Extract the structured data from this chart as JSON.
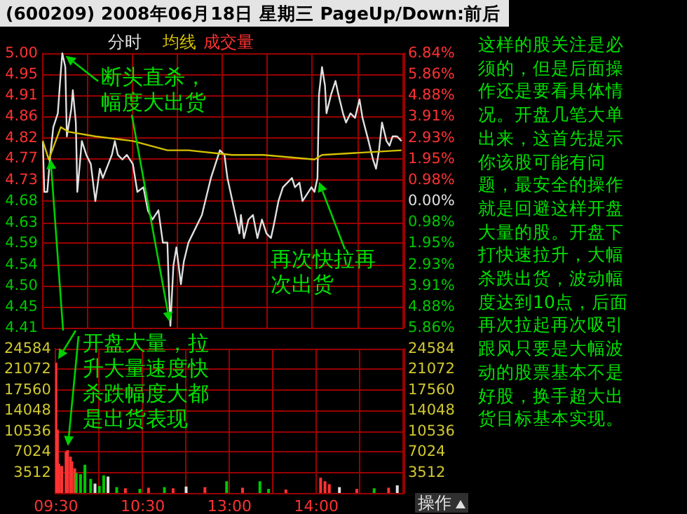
{
  "chart_data": [
    {
      "type": "line",
      "title": "(600209) 2008年06月18日 星期三 PageUp/Down:前后",
      "annotations": [
        "断头直杀，幅度大出货",
        "再次快拉再次出货",
        "这样的股关注是必须的，但是后面操作还是要看具体情况。开盘几笔大单出来，这首先提示你该股可能有问题，最安全的操作就是回避这样开盘大量的股。开盘下打快速拉升，大幅杀跌出货，波动幅度达到10点，后面再次拉起再次吸引跟风只要是大幅波动的股票基本不是好股，换手超大出货目标基本实现。"
      ],
      "categories": [
        null,
        null,
        null,
        null,
        null,
        null,
        null,
        null,
        null,
        null,
        null,
        null,
        null,
        null,
        null,
        null,
        null,
        null,
        null,
        null,
        null,
        null,
        null,
        null,
        null,
        null,
        null,
        null,
        null,
        null,
        null,
        null,
        null,
        null,
        null,
        null,
        null,
        null,
        null,
        null,
        null,
        null,
        null,
        null,
        null,
        null,
        null,
        null,
        null,
        null,
        null,
        null,
        null,
        null,
        null,
        null,
        null,
        null,
        null,
        null,
        null,
        null,
        null,
        null,
        null,
        null,
        null,
        null,
        null,
        null,
        null,
        null,
        null,
        null,
        null,
        null,
        null,
        null,
        null,
        null,
        null,
        null,
        null,
        null,
        null,
        null,
        null,
        null,
        null,
        null,
        null,
        null,
        null,
        null,
        null,
        null,
        null,
        null,
        null,
        null,
        null,
        null,
        null,
        null,
        null,
        null,
        null,
        null,
        null,
        null,
        null,
        null,
        null,
        null,
        null,
        null,
        null,
        null,
        null,
        null,
        null,
        null,
        null,
        null,
        null,
        null,
        null,
        null,
        null,
        null,
        null,
        null,
        null,
        null,
        null,
        null,
        null,
        null,
        null,
        null,
        null,
        null,
        null,
        null,
        null,
        null,
        null,
        null,
        null,
        null,
        null,
        null,
        null,
        null,
        null,
        null,
        null,
        null,
        null,
        null,
        null,
        null,
        null,
        null,
        null,
        null,
        null,
        null,
        null,
        null,
        null,
        null,
        null,
        null,
        null,
        null,
        null,
        null,
        null,
        null,
        null,
        null,
        null,
        null,
        null,
        null,
        null,
        null,
        null,
        null,
        null,
        null,
        null,
        null,
        null,
        null,
        null,
        null,
        null,
        null,
        null,
        null,
        null,
        null,
        null,
        null,
        null,
        null,
        null,
        null,
        null,
        null,
        null,
        null,
        null,
        null,
        null,
        null,
        null,
        null,
        null,
        null,
        null,
        null,
        null,
        null,
        null,
        null,
        null,
        null,
        null,
        null,
        null,
        null,
        null,
        null,
        null,
        null,
        null,
        null,
        null
      ],
      "series": [
        {
          "name": "分时",
          "color": "#e0e0e0",
          "values": [
            4.81,
            4.7,
            null,
            4.7,
            null,
            4.78,
            null,
            4.84,
            null,
            null,
            4.87,
            null,
            4.96,
            5.0,
            null,
            4.97,
            4.82,
            null,
            null,
            4.88,
            4.92,
            null,
            4.85,
            4.7,
            null,
            null,
            4.81,
            null,
            null,
            4.78,
            null,
            null,
            4.76,
            null,
            null,
            4.68,
            null,
            null,
            4.75,
            null,
            4.73,
            null,
            null,
            null,
            null,
            null,
            4.78,
            null,
            4.81,
            null,
            4.78,
            null,
            null,
            4.77,
            null,
            null,
            4.78,
            null,
            null,
            null,
            4.76,
            null,
            null,
            4.7,
            null,
            null,
            null,
            4.71,
            null,
            null,
            4.66,
            null,
            null,
            4.64,
            null,
            null,
            null,
            4.66,
            null,
            null,
            4.59,
            null,
            null,
            4.59,
            4.49,
            4.41,
            null,
            4.54,
            null,
            4.58,
            null,
            null,
            4.5,
            null,
            4.55,
            null,
            null,
            4.59,
            null,
            null,
            4.61,
            null,
            null,
            4.63,
            null,
            null,
            4.65,
            null,
            null,
            4.69,
            null,
            null,
            4.73,
            null,
            null,
            4.76,
            null,
            null,
            4.79,
            null,
            null,
            4.78,
            null,
            4.73,
            null,
            null,
            null,
            4.67,
            null,
            4.64,
            null,
            4.61,
            4.65,
            null,
            4.6,
            null,
            null,
            4.64,
            null,
            null,
            4.65,
            null,
            null,
            4.6,
            null,
            null,
            4.64,
            null,
            null,
            4.61,
            null,
            null,
            4.6,
            null,
            4.63,
            null,
            null,
            4.68,
            null,
            null,
            4.71,
            null,
            null,
            null,
            null,
            null,
            4.73,
            null,
            4.71,
            null,
            null,
            4.72,
            null,
            4.68,
            null,
            4.69,
            null,
            null,
            null,
            4.71,
            null,
            4.7,
            null,
            4.73,
            4.91,
            null,
            4.97,
            null,
            4.93,
            4.87,
            null,
            null,
            4.91,
            null,
            null,
            4.94,
            null,
            4.91,
            null,
            null,
            4.87,
            null,
            4.85,
            null,
            null,
            4.87,
            null,
            null,
            4.86,
            null,
            null,
            4.9,
            null,
            4.86,
            null,
            null,
            null,
            4.81,
            null,
            null,
            4.77,
            null,
            4.75,
            null,
            4.79,
            null,
            4.85,
            null,
            null,
            4.81,
            null,
            4.8,
            null,
            4.82,
            null,
            null,
            4.82,
            null,
            null,
            4.81,
            null
          ]
        },
        {
          "name": "均线",
          "color": "#d4c000",
          "values": [
            4.81,
            null,
            null,
            null,
            4.77,
            null,
            null,
            null,
            null,
            null,
            null,
            null,
            4.84,
            null,
            null,
            null,
            null,
            4.83,
            null,
            null,
            null,
            null,
            null,
            null,
            null,
            null,
            null,
            null,
            null,
            null,
            null,
            null,
            null,
            null,
            null,
            4.82,
            null,
            null,
            null,
            null,
            null,
            null,
            null,
            null,
            null,
            null,
            null,
            null,
            null,
            null,
            null,
            null,
            null,
            null,
            null,
            null,
            null,
            null,
            null,
            null,
            4.81,
            null,
            null,
            null,
            null,
            null,
            null,
            null,
            null,
            null,
            null,
            null,
            null,
            null,
            null,
            null,
            null,
            null,
            null,
            null,
            null,
            null,
            null,
            4.79,
            null,
            null,
            null,
            null,
            null,
            null,
            null,
            null,
            null,
            null,
            null,
            null,
            null,
            4.79,
            null,
            null,
            null,
            null,
            null,
            null,
            null,
            null,
            null,
            null,
            null,
            null,
            null,
            null,
            null,
            null,
            null,
            null,
            null,
            null,
            null,
            null,
            null,
            null,
            null,
            null,
            null,
            null,
            4.78,
            null,
            null,
            null,
            null,
            null,
            null,
            null,
            null,
            null,
            null,
            null,
            null,
            null,
            null,
            null,
            null,
            null,
            null,
            null,
            null,
            4.78,
            null,
            null,
            null,
            null,
            null,
            null,
            null,
            null,
            null,
            null,
            null,
            null,
            null,
            null,
            null,
            null,
            null,
            null,
            null,
            null,
            null,
            null,
            null,
            null,
            null,
            null,
            null,
            null,
            null,
            null,
            null,
            null,
            null,
            4.77,
            null,
            null,
            null,
            null,
            4.78,
            null,
            null,
            null,
            null,
            null,
            null,
            null,
            null,
            null,
            null,
            null,
            null,
            null,
            null,
            null,
            null,
            null,
            null,
            null,
            null,
            null,
            null,
            null,
            null,
            null,
            null,
            null,
            null,
            null,
            null,
            null,
            null,
            null,
            null,
            null,
            null,
            null,
            null,
            null,
            null,
            null,
            null,
            null,
            null,
            null,
            null,
            null,
            null,
            null,
            null,
            null,
            null,
            4.79,
            null
          ]
        }
      ],
      "ylim": [
        4.406,
        5.0
      ],
      "yticks": [
        {
          "value": 4.406,
          "label": "4.41"
        },
        {
          "value": 4.451,
          "label": "4.45"
        },
        {
          "value": 4.497,
          "label": "4.50"
        },
        {
          "value": 4.543,
          "label": "4.54"
        },
        {
          "value": 4.589,
          "label": "4.59"
        },
        {
          "value": 4.634,
          "label": "4.63"
        },
        {
          "value": 4.68,
          "label": "4.68"
        },
        {
          "value": 4.726,
          "label": "4.73"
        },
        {
          "value": 4.772,
          "label": "4.77"
        },
        {
          "value": 4.817,
          "label": "4.82"
        },
        {
          "value": 4.863,
          "label": "4.86"
        },
        {
          "value": 4.909,
          "label": "4.91"
        },
        {
          "value": 4.954,
          "label": "4.95"
        },
        {
          "value": 5.0,
          "label": "5.00"
        }
      ],
      "y2lim": [
        -5.86,
        6.84
      ],
      "y2ticks": [
        {
          "value": -5.86,
          "label": "5.86%"
        },
        {
          "value": -4.88,
          "label": "4.88%"
        },
        {
          "value": -3.91,
          "label": "3.91%"
        },
        {
          "value": -2.93,
          "label": "2.93%"
        },
        {
          "value": -1.95,
          "label": "1.95%"
        },
        {
          "value": -0.98,
          "label": "0.98%"
        },
        {
          "value": 0,
          "label": "0.00%"
        },
        {
          "value": 0.98,
          "label": "0.98%"
        },
        {
          "value": 1.95,
          "label": "1.95%"
        },
        {
          "value": 2.93,
          "label": "2.93%"
        },
        {
          "value": 3.91,
          "label": "3.91%"
        },
        {
          "value": 4.88,
          "label": "4.88%"
        },
        {
          "value": 5.86,
          "label": "5.86%"
        },
        {
          "value": 6.84,
          "label": "6.84%"
        }
      ],
      "tick_labels": "y",
      "grid": true,
      "legend": "top left"
    },
    {
      "type": "bar",
      "annotations": [
        "开盘大量，拉升大量速度快杀跌幅度大都是出货表现",
        "操作"
      ],
      "categories": [
        "09:30",
        null,
        null,
        null,
        null,
        null,
        null,
        null,
        null,
        null,
        null,
        null,
        null,
        null,
        null,
        null,
        null,
        null,
        null,
        null,
        null,
        null,
        null,
        null,
        null,
        null,
        null,
        null,
        null,
        null,
        null,
        null,
        null,
        null,
        null,
        null,
        null,
        null,
        null,
        null,
        null,
        null,
        null,
        null,
        null,
        null,
        null,
        null,
        null,
        null,
        null,
        null,
        null,
        null,
        null,
        null,
        null,
        null,
        null,
        null,
        "10:30",
        null,
        null,
        null,
        null,
        null,
        null,
        null,
        null,
        null,
        null,
        null,
        null,
        null,
        null,
        null,
        null,
        null,
        null,
        null,
        null,
        null,
        null,
        null,
        null,
        null,
        null,
        null,
        null,
        null,
        null,
        null,
        null,
        null,
        null,
        null,
        null,
        null,
        null,
        null,
        null,
        null,
        null,
        null,
        null,
        null,
        null,
        null,
        null,
        null,
        null,
        null,
        null,
        null,
        null,
        null,
        null,
        null,
        null,
        null,
        "13:00",
        null,
        null,
        null,
        null,
        null,
        null,
        null,
        null,
        null,
        null,
        null,
        null,
        null,
        null,
        null,
        null,
        null,
        null,
        null,
        null,
        null,
        null,
        null,
        null,
        null,
        null,
        null,
        null,
        null,
        null,
        null,
        null,
        null,
        null,
        null,
        null,
        null,
        null,
        null,
        null,
        null,
        null,
        null,
        null,
        null,
        null,
        null,
        null,
        null,
        null,
        null,
        null,
        null,
        null,
        null,
        null,
        null,
        null,
        null,
        "14:00",
        null,
        null,
        null,
        null,
        null,
        null,
        null,
        null,
        null,
        null,
        null,
        null,
        null,
        null,
        null,
        null,
        null,
        null,
        null,
        null,
        null,
        null,
        null,
        null,
        null,
        null,
        null,
        null,
        null,
        null,
        null,
        null,
        null,
        null,
        null,
        null,
        null,
        null,
        null,
        null,
        null,
        null,
        null,
        null,
        null,
        null,
        null,
        null,
        null,
        null,
        null,
        null,
        null,
        null,
        null,
        null,
        null,
        null,
        null,
        null
      ],
      "series": [
        {
          "name": "成交量",
          "color": "#ff3232",
          "values": [
            22200,
            10800,
            5000,
            null,
            4600,
            null,
            null,
            7000,
            7300,
            null,
            6200,
            5400,
            null,
            4200,
            3400,
            null,
            null,
            3200,
            null,
            null,
            4800,
            null,
            null,
            null,
            2400,
            null,
            null,
            1600,
            null,
            null,
            1200,
            null,
            null,
            3000,
            null,
            null,
            2800,
            null,
            null,
            null,
            null,
            null,
            1000,
            null,
            null,
            null,
            null,
            null,
            800,
            null,
            null,
            null,
            null,
            null,
            null,
            null,
            null,
            null,
            700,
            null,
            null,
            null,
            null,
            null,
            900,
            null,
            null,
            null,
            null,
            null,
            null,
            null,
            null,
            null,
            null,
            1000,
            null,
            null,
            null,
            null,
            null,
            800,
            null,
            null,
            null,
            null,
            null,
            null,
            null,
            null,
            1100,
            null,
            null,
            null,
            null,
            null,
            null,
            null,
            null,
            null,
            null,
            null,
            null,
            1000,
            null,
            null,
            null,
            null,
            null,
            null,
            null,
            null,
            null,
            null,
            null,
            null,
            null,
            null,
            2000,
            null,
            null,
            null,
            null,
            null,
            null,
            null,
            null,
            null,
            null,
            900,
            null,
            null,
            null,
            null,
            null,
            null,
            null,
            null,
            null,
            null,
            null,
            2000,
            null,
            null,
            null,
            null,
            null,
            700,
            null,
            null,
            null,
            null,
            null,
            null,
            null,
            null,
            null,
            null,
            null,
            600,
            null,
            null,
            null,
            null,
            null,
            null,
            null,
            null,
            null,
            null,
            null,
            null,
            null,
            null,
            null,
            null,
            null,
            null,
            null,
            null,
            null,
            null,
            null,
            2600,
            null,
            null,
            2000,
            null,
            null,
            1500,
            null,
            null,
            null,
            null,
            null,
            null,
            1000,
            null,
            null,
            null,
            null,
            null,
            null,
            null,
            null,
            null,
            null,
            null,
            700,
            null,
            null,
            null,
            null,
            null,
            null,
            null,
            null,
            null,
            null,
            null,
            800,
            null,
            null,
            null,
            null,
            null,
            null,
            null,
            null,
            null,
            900,
            null,
            null,
            null,
            null,
            null,
            1300,
            null,
            null,
            null,
            null
          ],
          "colors": [
            "#ff3232",
            "#ff3232",
            "#ff3232",
            null,
            "#ff3232",
            null,
            null,
            "#ff3232",
            "#ff3232",
            null,
            "#ff3232",
            "#ff3232",
            null,
            "#ff3232",
            "#00c800",
            null,
            null,
            "#00c800",
            null,
            null,
            "#00c800",
            null,
            null,
            null,
            "#00c800",
            null,
            null,
            "#e0e0e0",
            null,
            null,
            "#00c800",
            null,
            null,
            "#00c800",
            null,
            null,
            "#e0e0e0",
            null,
            null,
            null,
            null,
            null,
            "#00c800",
            null,
            null,
            null,
            null,
            null,
            "#ff3232",
            null,
            null,
            null,
            null,
            null,
            null,
            null,
            null,
            null,
            "#00c800",
            null,
            null,
            null,
            null,
            null,
            "#ff3232",
            null,
            null,
            null,
            null,
            null,
            null,
            null,
            null,
            null,
            null,
            "#00c800",
            null,
            null,
            null,
            null,
            null,
            "#ff3232",
            null,
            null,
            null,
            null,
            null,
            null,
            null,
            null,
            "#e0e0e0",
            null,
            null,
            null,
            null,
            null,
            null,
            null,
            null,
            null,
            null,
            null,
            null,
            "#ff3232",
            null,
            null,
            null,
            null,
            null,
            null,
            null,
            null,
            null,
            null,
            null,
            null,
            null,
            null,
            "#00c800",
            null,
            null,
            null,
            null,
            null,
            null,
            null,
            null,
            null,
            null,
            "#ff3232",
            null,
            null,
            null,
            null,
            null,
            null,
            null,
            null,
            null,
            null,
            null,
            "#00c800",
            null,
            null,
            null,
            null,
            null,
            "#00c800",
            null,
            null,
            null,
            null,
            null,
            null,
            null,
            null,
            null,
            null,
            null,
            "#ff3232",
            null,
            null,
            null,
            null,
            null,
            null,
            null,
            null,
            null,
            null,
            null,
            null,
            null,
            null,
            null,
            null,
            null,
            null,
            null,
            null,
            null,
            null,
            null,
            "#ff3232",
            null,
            null,
            "#ff3232",
            null,
            null,
            "#ff3232",
            null,
            null,
            null,
            null,
            null,
            null,
            "#e0e0e0",
            null,
            null,
            null,
            null,
            null,
            null,
            null,
            null,
            null,
            null,
            null,
            "#ff3232",
            null,
            null,
            null,
            null,
            null,
            null,
            null,
            null,
            null,
            null,
            null,
            "#00c800",
            null,
            null,
            null,
            null,
            null,
            null,
            null,
            null,
            null,
            "#ff3232",
            null,
            null,
            null,
            null,
            null,
            "#e0e0e0",
            null,
            null,
            null,
            null
          ]
        }
      ],
      "ylim": [
        0,
        24584
      ],
      "yticks": [
        3512,
        7024,
        10536,
        14048,
        17560,
        21072,
        24584
      ],
      "y2lim": [
        0,
        24584
      ],
      "y2ticks": [
        3512,
        7024,
        10536,
        14048,
        17560,
        21072,
        24584
      ],
      "grid": true,
      "legend": "top left"
    }
  ]
}
